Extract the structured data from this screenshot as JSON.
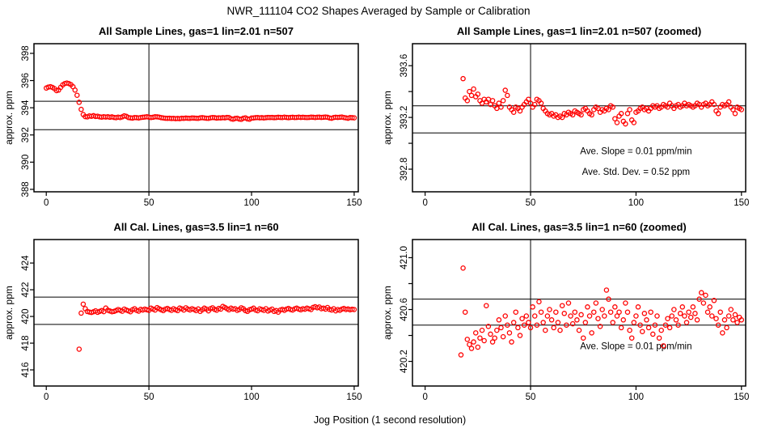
{
  "title": "NWR_111104  CO2 Shapes Averaged by Sample or Calibration",
  "xlabel": "Jog Position (1 second resolution)",
  "colors": {
    "point": "#FF0000",
    "axis": "#000000",
    "text": "#000000",
    "background": "#FFFFFF"
  },
  "chart_data": [
    {
      "type": "scatter",
      "title": "All Sample Lines, gas=1 lin=2.01 n=507",
      "ylabel": "approx. ppm",
      "xlim": [
        -6,
        152
      ],
      "ylim": [
        387.82,
        398.71
      ],
      "xticks": [
        0,
        50,
        100,
        150
      ],
      "xtick_labels": [
        "0",
        "50",
        "100",
        "150"
      ],
      "yticks": [
        388,
        390,
        392,
        394,
        396,
        398
      ],
      "ytick_labels": [
        "388",
        "390",
        "392",
        "394",
        "396",
        "398"
      ],
      "hlines": [
        394.48,
        392.39
      ],
      "vlines": [
        50
      ],
      "annotations": [],
      "x_start": 0,
      "y": [
        395.45,
        395.52,
        395.55,
        395.5,
        395.4,
        395.26,
        395.3,
        395.5,
        395.68,
        395.78,
        395.82,
        395.78,
        395.7,
        395.55,
        395.3,
        394.92,
        394.4,
        393.88,
        393.5,
        393.35,
        393.33,
        393.4,
        393.37,
        393.42,
        393.36,
        393.38,
        393.33,
        393.31,
        393.34,
        393.32,
        393.34,
        393.3,
        393.33,
        393.29,
        393.27,
        393.31,
        393.28,
        393.33,
        393.41,
        393.37,
        393.28,
        393.26,
        393.24,
        393.28,
        393.27,
        393.25,
        393.28,
        393.3,
        393.32,
        393.34,
        393.31,
        393.28,
        393.3,
        393.34,
        393.33,
        393.31,
        393.27,
        393.25,
        393.23,
        393.22,
        393.23,
        393.21,
        393.22,
        393.2,
        393.21,
        393.2,
        393.23,
        393.22,
        393.24,
        393.23,
        393.22,
        393.25,
        393.24,
        393.23,
        393.22,
        393.26,
        393.27,
        393.25,
        393.23,
        393.22,
        393.26,
        393.28,
        393.27,
        393.24,
        393.26,
        393.25,
        393.27,
        393.26,
        393.29,
        393.28,
        393.19,
        393.16,
        393.21,
        393.23,
        393.17,
        393.15,
        393.23,
        393.26,
        393.18,
        393.16,
        393.24,
        393.25,
        393.27,
        393.28,
        393.26,
        393.27,
        393.25,
        393.27,
        393.29,
        393.28,
        393.29,
        393.27,
        393.28,
        393.3,
        393.29,
        393.28,
        393.31,
        393.29,
        393.27,
        393.29,
        393.3,
        393.28,
        393.29,
        393.31,
        393.29,
        393.3,
        393.29,
        393.28,
        393.29,
        393.31,
        393.3,
        393.28,
        393.3,
        393.31,
        393.29,
        393.3,
        393.32,
        393.3,
        393.25,
        393.23,
        393.28,
        393.3,
        393.29,
        393.3,
        393.32,
        393.28,
        393.26,
        393.23,
        393.28,
        393.27,
        393.26
      ]
    },
    {
      "type": "scatter",
      "title": "All Sample Lines, gas=1 lin=2.01 n=507 (zoomed)",
      "ylabel": "approx. ppm",
      "xlim": [
        -6,
        152
      ],
      "ylim": [
        392.625,
        393.77
      ],
      "xticks": [
        0,
        50,
        100,
        150
      ],
      "xtick_labels": [
        "0",
        "50",
        "100",
        "150"
      ],
      "yticks": [
        392.8,
        393.0,
        393.2,
        393.4,
        393.6
      ],
      "ytick_labels": [
        "392.8",
        "",
        "393.2",
        "",
        "393.6"
      ],
      "hlines": [
        393.29,
        393.08
      ],
      "vlines": [
        50
      ],
      "annotations": [
        {
          "text": "Ave. Slope =  0.01  ppm/min",
          "x": 100,
          "y": 392.94
        },
        {
          "text": "Ave. Std. Dev. =  0.52  ppm",
          "x": 100,
          "y": 392.78
        }
      ],
      "x_start": 18,
      "y": [
        393.5,
        393.35,
        393.33,
        393.4,
        393.37,
        393.42,
        393.36,
        393.38,
        393.33,
        393.31,
        393.34,
        393.32,
        393.34,
        393.3,
        393.33,
        393.29,
        393.27,
        393.31,
        393.28,
        393.33,
        393.41,
        393.37,
        393.28,
        393.26,
        393.24,
        393.28,
        393.27,
        393.25,
        393.28,
        393.3,
        393.32,
        393.34,
        393.31,
        393.28,
        393.3,
        393.34,
        393.33,
        393.31,
        393.27,
        393.25,
        393.23,
        393.22,
        393.23,
        393.21,
        393.22,
        393.2,
        393.21,
        393.2,
        393.23,
        393.22,
        393.24,
        393.23,
        393.22,
        393.25,
        393.24,
        393.23,
        393.22,
        393.26,
        393.27,
        393.25,
        393.23,
        393.22,
        393.26,
        393.28,
        393.27,
        393.24,
        393.26,
        393.25,
        393.27,
        393.26,
        393.29,
        393.28,
        393.19,
        393.16,
        393.21,
        393.23,
        393.17,
        393.15,
        393.23,
        393.26,
        393.18,
        393.16,
        393.24,
        393.25,
        393.27,
        393.28,
        393.26,
        393.27,
        393.25,
        393.27,
        393.29,
        393.28,
        393.29,
        393.27,
        393.28,
        393.3,
        393.29,
        393.28,
        393.31,
        393.29,
        393.27,
        393.29,
        393.3,
        393.28,
        393.29,
        393.31,
        393.29,
        393.3,
        393.29,
        393.28,
        393.29,
        393.31,
        393.3,
        393.28,
        393.3,
        393.31,
        393.29,
        393.3,
        393.32,
        393.3,
        393.25,
        393.23,
        393.28,
        393.3,
        393.29,
        393.3,
        393.32,
        393.28,
        393.26,
        393.23,
        393.28,
        393.27,
        393.26
      ]
    },
    {
      "type": "scatter",
      "title": "All Cal. Lines, gas=3.5 lin=1 n=60",
      "ylabel": "approx. ppm",
      "xlim": [
        -6,
        152
      ],
      "ylim": [
        414.79,
        425.76
      ],
      "xticks": [
        0,
        50,
        100,
        150
      ],
      "xtick_labels": [
        "0",
        "50",
        "100",
        "150"
      ],
      "yticks": [
        416,
        418,
        420,
        422,
        424
      ],
      "ytick_labels": [
        "416",
        "418",
        "420",
        "422",
        "424"
      ],
      "hlines": [
        421.45,
        419.4
      ],
      "vlines": [
        50
      ],
      "annotations": [],
      "x_start": 16,
      "y": [
        417.55,
        420.25,
        420.92,
        420.58,
        420.37,
        420.33,
        420.3,
        420.35,
        420.42,
        420.31,
        420.38,
        420.44,
        420.36,
        420.63,
        420.47,
        420.41,
        420.35,
        420.38,
        420.44,
        420.52,
        420.46,
        420.39,
        420.55,
        420.48,
        420.42,
        420.35,
        420.5,
        420.58,
        420.46,
        420.4,
        420.53,
        420.48,
        420.55,
        420.5,
        420.46,
        420.62,
        420.55,
        420.48,
        420.66,
        420.58,
        420.5,
        420.44,
        420.55,
        420.6,
        420.52,
        420.46,
        420.58,
        420.5,
        420.44,
        420.63,
        420.57,
        420.48,
        420.65,
        420.55,
        420.49,
        420.58,
        420.52,
        420.44,
        420.56,
        420.38,
        420.5,
        420.62,
        420.55,
        420.42,
        420.58,
        420.65,
        420.53,
        420.47,
        420.6,
        420.55,
        420.75,
        420.68,
        420.58,
        420.5,
        420.62,
        420.55,
        420.58,
        420.46,
        420.52,
        420.65,
        420.58,
        420.44,
        420.38,
        420.5,
        420.55,
        420.62,
        420.48,
        420.43,
        420.57,
        420.52,
        420.46,
        420.58,
        420.41,
        420.48,
        420.55,
        420.38,
        420.44,
        420.32,
        420.48,
        420.53,
        420.46,
        420.55,
        420.6,
        420.52,
        420.48,
        420.57,
        420.62,
        420.55,
        420.5,
        420.58,
        420.54,
        420.62,
        420.57,
        420.52,
        420.68,
        420.73,
        420.65,
        420.71,
        420.58,
        420.62,
        420.55,
        420.67,
        420.53,
        420.48,
        420.58,
        420.42,
        420.52,
        420.46,
        420.55,
        420.6,
        420.52,
        420.56,
        420.5,
        420.54,
        420.52
      ]
    },
    {
      "type": "scatter",
      "title": "All Cal. Lines, gas=3.5 lin=1 n=60 (zoomed)",
      "ylabel": "approx. ppm",
      "xlim": [
        -6,
        152
      ],
      "ylim": [
        420.01,
        421.14
      ],
      "xticks": [
        0,
        50,
        100,
        150
      ],
      "xtick_labels": [
        "0",
        "50",
        "100",
        "150"
      ],
      "yticks": [
        420.2,
        420.4,
        420.6,
        420.8,
        421.0
      ],
      "ytick_labels": [
        "420.2",
        "",
        "420.6",
        "",
        "421.0"
      ],
      "hlines": [
        420.68,
        420.48
      ],
      "vlines": [
        50
      ],
      "annotations": [
        {
          "text": "Ave. Slope =  0.01  ppm/min",
          "x": 100,
          "y": 420.32
        }
      ],
      "x_start": 17,
      "y": [
        420.25,
        420.92,
        420.58,
        420.37,
        420.33,
        420.3,
        420.35,
        420.42,
        420.31,
        420.38,
        420.44,
        420.36,
        420.63,
        420.47,
        420.41,
        420.35,
        420.38,
        420.44,
        420.52,
        420.46,
        420.39,
        420.55,
        420.48,
        420.42,
        420.35,
        420.5,
        420.58,
        420.46,
        420.4,
        420.53,
        420.48,
        420.55,
        420.5,
        420.46,
        420.62,
        420.55,
        420.48,
        420.66,
        420.58,
        420.5,
        420.44,
        420.55,
        420.6,
        420.52,
        420.46,
        420.58,
        420.5,
        420.44,
        420.63,
        420.57,
        420.48,
        420.65,
        420.55,
        420.49,
        420.58,
        420.52,
        420.44,
        420.56,
        420.38,
        420.5,
        420.62,
        420.55,
        420.42,
        420.58,
        420.65,
        420.53,
        420.47,
        420.6,
        420.55,
        420.75,
        420.68,
        420.58,
        420.5,
        420.62,
        420.55,
        420.58,
        420.46,
        420.52,
        420.65,
        420.58,
        420.44,
        420.38,
        420.5,
        420.55,
        420.62,
        420.48,
        420.43,
        420.57,
        420.52,
        420.46,
        420.58,
        420.41,
        420.48,
        420.55,
        420.38,
        420.44,
        420.32,
        420.48,
        420.53,
        420.46,
        420.55,
        420.6,
        420.52,
        420.48,
        420.57,
        420.62,
        420.55,
        420.5,
        420.58,
        420.54,
        420.62,
        420.57,
        420.52,
        420.68,
        420.73,
        420.65,
        420.71,
        420.58,
        420.62,
        420.55,
        420.67,
        420.53,
        420.48,
        420.58,
        420.42,
        420.52,
        420.46,
        420.55,
        420.6,
        420.52,
        420.56,
        420.5,
        420.54,
        420.52
      ]
    }
  ]
}
